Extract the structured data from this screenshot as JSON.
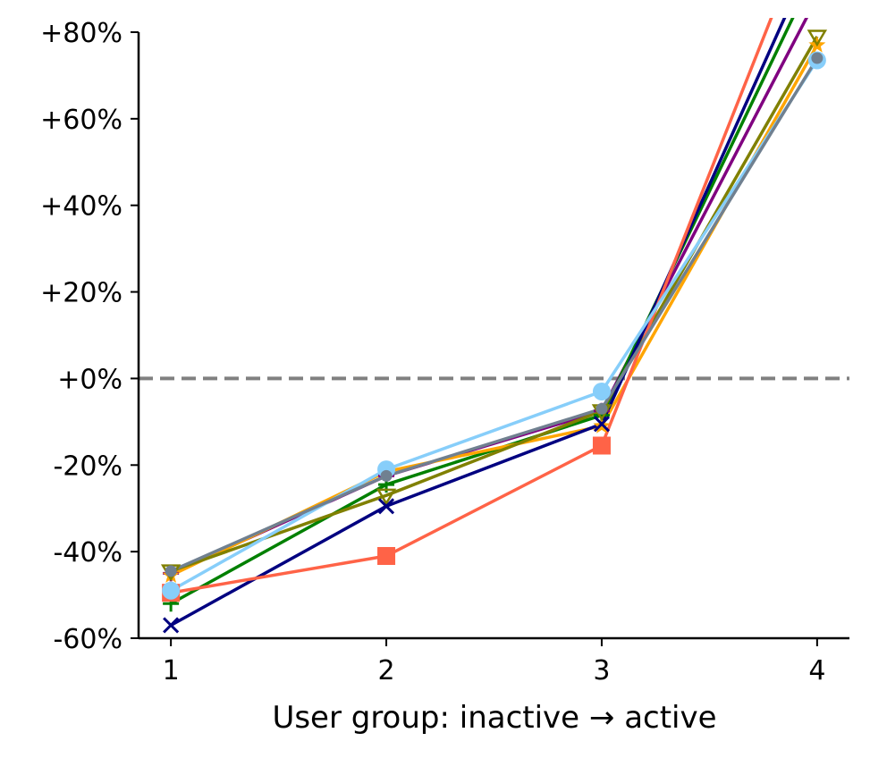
{
  "chart_data": {
    "type": "line",
    "title": "",
    "xlabel": "User group: inactive → active",
    "ylabel": "",
    "x": [
      1,
      2,
      3,
      4
    ],
    "xticks": [
      "1",
      "2",
      "3",
      "4"
    ],
    "ylim": [
      -60,
      80
    ],
    "yticks": [
      -60,
      -40,
      -20,
      0,
      20,
      40,
      60,
      80
    ],
    "ytick_labels": [
      "-60%",
      "-40%",
      "-20%",
      "+0%",
      "+20%",
      "+40%",
      "+60%",
      "+80%"
    ],
    "reference_line": {
      "y": 0,
      "style": "dashed",
      "color": "#808080"
    },
    "grid": false,
    "legend": "none",
    "series": [
      {
        "color": "#800080",
        "marker": "plus",
        "values": [
          -45,
          -22.5,
          -7.5,
          88
        ]
      },
      {
        "color": "#008000",
        "marker": "plus",
        "values": [
          -52,
          -24.5,
          -8.5,
          95
        ]
      },
      {
        "color": "#FFA500",
        "marker": "star",
        "values": [
          -45.5,
          -21.5,
          -11,
          77
        ]
      },
      {
        "color": "#808000",
        "marker": "triangle",
        "values": [
          -44.5,
          -27,
          -7.5,
          79
        ]
      },
      {
        "color": "#000080",
        "marker": "x",
        "values": [
          -57,
          -29.5,
          -10.5,
          100
        ]
      },
      {
        "color": "#FF6347",
        "marker": "square",
        "values": [
          -49.5,
          -41,
          -15.5,
          110
        ]
      },
      {
        "color": "#87CEFA",
        "marker": "circle",
        "values": [
          -49,
          -21,
          -3,
          73.5
        ]
      },
      {
        "color": "#708090",
        "marker": "dot",
        "values": [
          -44.5,
          -22.5,
          -7,
          74
        ]
      }
    ]
  }
}
